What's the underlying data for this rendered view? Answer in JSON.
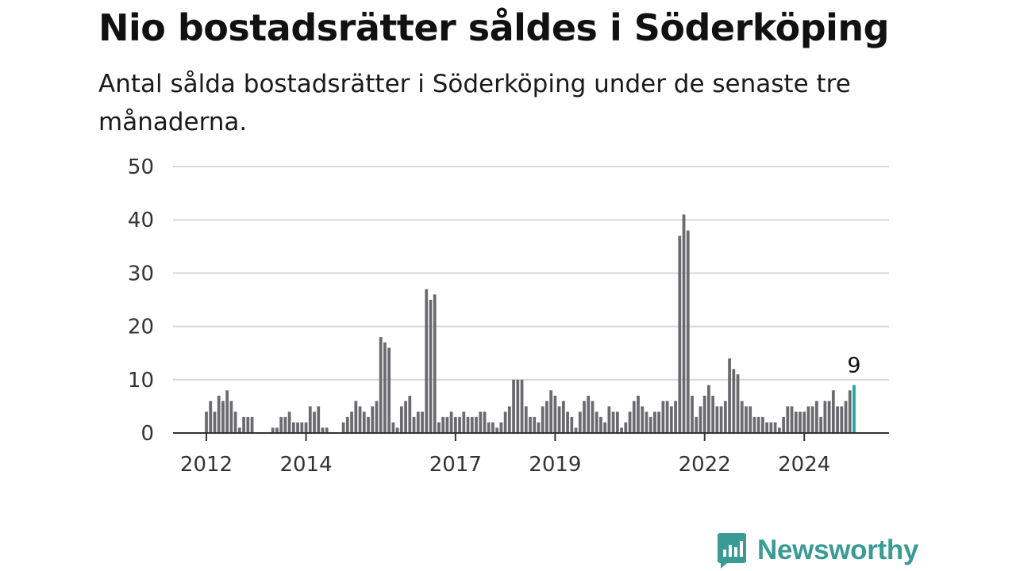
{
  "title": "Nio bostadsrätter såldes i Söderköping",
  "subtitle": "Antal sålda bostadsrätter i Söderköping under de senaste tre månaderna.",
  "brand": {
    "name": "Newsworthy",
    "color": "#3a9b94"
  },
  "chart_data": {
    "type": "bar",
    "title": "Nio bostadsrätter såldes i Söderköping",
    "subtitle": "Antal sålda bostadsrätter i Söderköping under de senaste tre månaderna.",
    "x_tick_labels": [
      "2012",
      "2014",
      "2017",
      "2019",
      "2022",
      "2024"
    ],
    "y_ticks": [
      0,
      10,
      20,
      30,
      40,
      50
    ],
    "ylim": [
      0,
      50
    ],
    "grid": true,
    "bar_color": "#6b6a70",
    "highlight_color": "#1fa8a0",
    "highlight_label": "9",
    "values": [
      4,
      6,
      4,
      7,
      6,
      8,
      6,
      4,
      1,
      3,
      3,
      3,
      null,
      null,
      null,
      null,
      1,
      1,
      3,
      3,
      4,
      2,
      2,
      2,
      2,
      5,
      4,
      5,
      1,
      1,
      null,
      null,
      null,
      2,
      3,
      4,
      6,
      5,
      4,
      3,
      5,
      6,
      18,
      17,
      16,
      2,
      1,
      5,
      6,
      7,
      3,
      4,
      4,
      27,
      25,
      26,
      2,
      3,
      3,
      4,
      3,
      3,
      4,
      3,
      3,
      3,
      4,
      4,
      2,
      2,
      1,
      2,
      4,
      5,
      10,
      10,
      10,
      5,
      3,
      3,
      2,
      5,
      6,
      8,
      7,
      5,
      6,
      4,
      3,
      1,
      4,
      6,
      7,
      6,
      4,
      3,
      2,
      5,
      4,
      4,
      1,
      2,
      4,
      6,
      7,
      5,
      4,
      3,
      4,
      4,
      6,
      6,
      5,
      6,
      37,
      41,
      38,
      7,
      3,
      5,
      7,
      9,
      7,
      5,
      5,
      6,
      14,
      12,
      11,
      6,
      5,
      5,
      3,
      3,
      3,
      2,
      2,
      2,
      1,
      3,
      5,
      5,
      4,
      4,
      4,
      5,
      5,
      6,
      3,
      6,
      6,
      8,
      5,
      5,
      6,
      8,
      9
    ]
  }
}
